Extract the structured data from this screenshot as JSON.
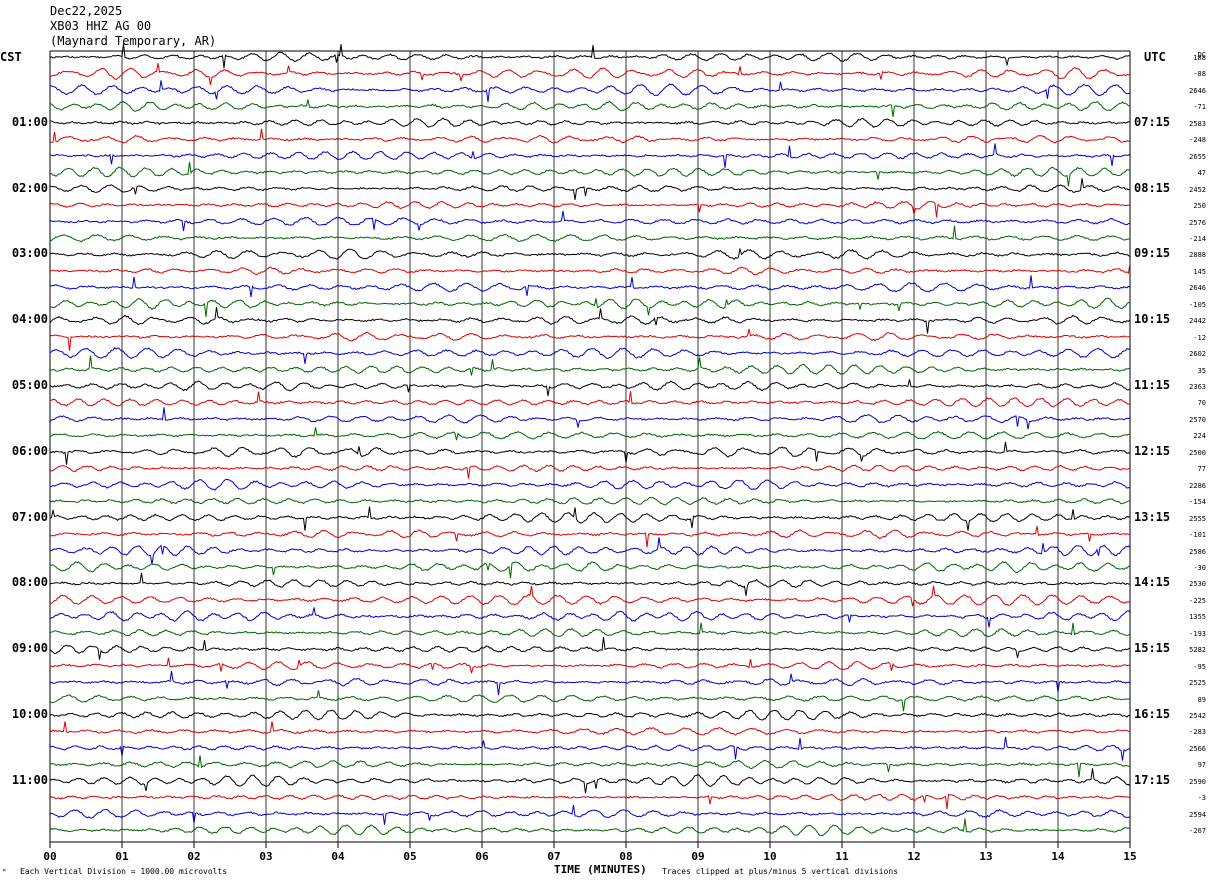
{
  "header": {
    "date": "Dec22,2025",
    "station": "XB03 HHZ AG 00",
    "location": "(Maynard Temporary, AR)"
  },
  "left_tz": "CST",
  "right_tz": "UTC",
  "dc_label": "DC",
  "footer": {
    "scale": "Each Vertical Division = 1000.00 microvolts",
    "clip": "Traces clipped at plus/minus 5 vertical divisions",
    "corner_mark": "ᴹ"
  },
  "colors": {
    "trace_cycle": [
      "#000000",
      "#dd0000",
      "#0000cc",
      "#006600"
    ],
    "grid": "#000000"
  },
  "chart_data": {
    "type": "line",
    "title": "",
    "xlabel": "TIME (MINUTES)",
    "xlim": [
      0,
      15
    ],
    "x_ticks": [
      "00",
      "01",
      "02",
      "03",
      "04",
      "05",
      "06",
      "07",
      "08",
      "09",
      "10",
      "11",
      "12",
      "13",
      "14",
      "15"
    ],
    "left_hour_labels": [
      "01:00",
      "02:00",
      "03:00",
      "04:00",
      "05:00",
      "06:00",
      "07:00",
      "08:00",
      "09:00",
      "10:00",
      "11:00"
    ],
    "right_hour_labels": [
      "07:15",
      "08:15",
      "09:15",
      "10:15",
      "11:15",
      "12:15",
      "13:15",
      "14:15",
      "15:15",
      "16:15",
      "17:15"
    ],
    "traces_per_hour": 4,
    "trace_count": 48,
    "dc_offsets": [
      "188",
      "-88",
      "2646",
      "-71",
      "2583",
      "-248",
      "2655",
      "47",
      "2452",
      "250",
      "2576",
      "-214",
      "2888",
      "145",
      "2646",
      "-105",
      "2442",
      "-12",
      "2602",
      "35",
      "2363",
      "70",
      "2570",
      "224",
      "2500",
      "77",
      "2286",
      "-154",
      "2555",
      "-101",
      "2586",
      "-30",
      "2530",
      "-225",
      "1355",
      "-193",
      "5282",
      "-95",
      "2525",
      "89",
      "2542",
      "-283",
      "2566",
      "97",
      "2590",
      "-3",
      "2594",
      "-267"
    ]
  }
}
